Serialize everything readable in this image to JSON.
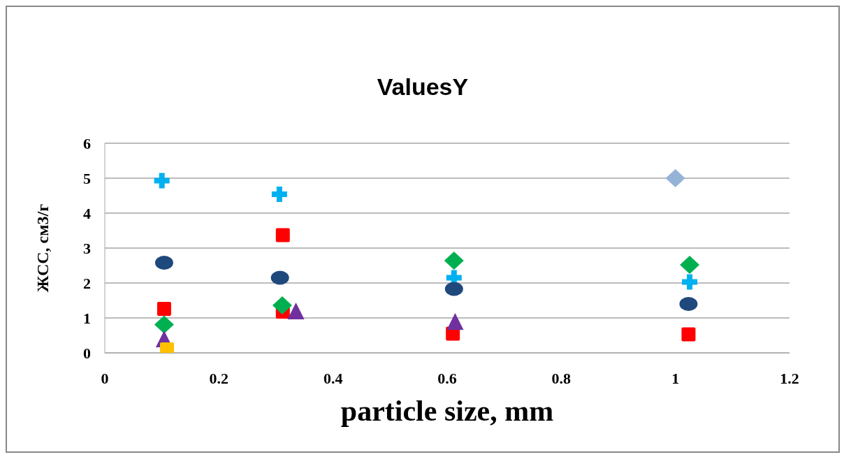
{
  "chart_data": {
    "type": "scatter",
    "title": "ValuesY",
    "xlabel": "particle size, mm",
    "ylabel": "ЖСС, см3/г",
    "xlim": [
      0,
      1.2
    ],
    "xticks": [
      0,
      0.2,
      0.4,
      0.6,
      0.8,
      1,
      1.2
    ],
    "ylim": [
      0,
      6
    ],
    "yticks": [
      0,
      1,
      2,
      3,
      4,
      5,
      6
    ],
    "grid": "y",
    "legend": false,
    "series": [
      {
        "color": "#00b0f0",
        "marker": "cross",
        "x": [
          0.1,
          0.306,
          0.612,
          1.025
        ],
        "values": [
          4.93,
          4.54,
          2.15,
          2.03
        ]
      },
      {
        "color": "#1f497d",
        "marker": "circle",
        "x": [
          0.104,
          0.307,
          0.612,
          1.023
        ],
        "values": [
          2.58,
          2.15,
          1.83,
          1.4
        ]
      },
      {
        "color": "#ff0000",
        "marker": "square",
        "x": [
          0.104,
          0.312,
          0.312,
          0.61,
          1.023
        ],
        "values": [
          1.26,
          3.37,
          1.18,
          0.55,
          0.53
        ]
      },
      {
        "color": "#00b050",
        "marker": "diamond",
        "x": [
          0.104,
          0.311,
          0.612,
          1.025
        ],
        "values": [
          0.81,
          1.36,
          2.64,
          2.52
        ]
      },
      {
        "color": "#7030a0",
        "marker": "triangle",
        "x": [
          0.104,
          0.335,
          0.614
        ],
        "values": [
          0.4,
          1.2,
          0.9
        ]
      },
      {
        "color": "#ffc000",
        "marker": "square",
        "x": [
          0.109
        ],
        "values": [
          0.1
        ]
      },
      {
        "color": "#95b3d7",
        "marker": "diamond",
        "x": [
          1
        ],
        "values": [
          5
        ]
      }
    ]
  }
}
